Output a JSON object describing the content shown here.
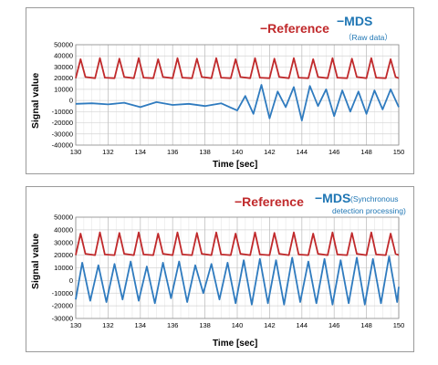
{
  "charts": [
    {
      "legend_ref": "−Reference",
      "legend_mds": "−MDS",
      "legend_mds_sub": "（Raw data）",
      "ylabel": "Signal value",
      "xlabel": "Time [sec]"
    },
    {
      "legend_ref": "−Reference",
      "legend_mds": "−MDS",
      "legend_mds_sub1": "(Synchronous",
      "legend_mds_sub2": "detection processing)",
      "ylabel": "Signal value",
      "xlabel": "Time [sec]"
    }
  ],
  "colors": {
    "reference": "#c0292b",
    "mds": "#2f7bbf",
    "grid": "#d4d4d4"
  },
  "chart_data": [
    {
      "type": "line",
      "xlabel": "Time [sec]",
      "ylabel": "Signal value",
      "xlim": [
        130,
        150
      ],
      "ylim": [
        -40000,
        50000
      ],
      "x_ticks": [
        130,
        132,
        134,
        136,
        138,
        140,
        142,
        144,
        146,
        148,
        150
      ],
      "y_ticks": [
        50000,
        40000,
        30000,
        20000,
        10000,
        0,
        -10000,
        -20000,
        -30000,
        -40000
      ],
      "grid": true,
      "legend_position": "top-right",
      "series": [
        {
          "name": "Reference",
          "color": "#c0292b",
          "x": [
            130,
            130.3,
            130.6,
            131.2,
            131.5,
            131.8,
            132.4,
            132.7,
            133.0,
            133.6,
            133.9,
            134.2,
            134.8,
            135.1,
            135.4,
            136.0,
            136.3,
            136.6,
            137.2,
            137.5,
            137.8,
            138.4,
            138.7,
            139.0,
            139.6,
            139.9,
            140.2,
            140.8,
            141.1,
            141.4,
            142.0,
            142.3,
            142.6,
            143.2,
            143.5,
            143.8,
            144.4,
            144.7,
            145.0,
            145.6,
            145.9,
            146.2,
            146.8,
            147.1,
            147.4,
            148.0,
            148.3,
            148.6,
            149.2,
            149.5,
            149.8,
            150
          ],
          "y": [
            20000,
            37000,
            21000,
            20000,
            38000,
            20500,
            20000,
            37500,
            21000,
            20000,
            38000,
            20500,
            20000,
            37000,
            21000,
            20000,
            38000,
            20500,
            20000,
            37500,
            21000,
            20000,
            38000,
            20500,
            20000,
            37000,
            21000,
            20000,
            38000,
            20500,
            20000,
            37500,
            21000,
            20000,
            38000,
            20500,
            20000,
            37000,
            21000,
            20000,
            38000,
            20500,
            20000,
            37500,
            21000,
            20000,
            38000,
            20500,
            20000,
            37000,
            21000,
            20000
          ]
        },
        {
          "name": "MDS (Raw data)",
          "color": "#2f7bbf",
          "x": [
            130,
            131,
            132,
            133,
            134,
            135,
            136,
            137,
            138,
            139,
            140,
            140.5,
            141,
            141.5,
            142,
            142.5,
            143,
            143.5,
            144,
            144.5,
            145,
            145.5,
            146,
            146.5,
            147,
            147.5,
            148,
            148.5,
            149,
            149.5,
            150
          ],
          "y": [
            -3000,
            -2500,
            -3500,
            -2000,
            -6000,
            -1500,
            -4000,
            -3000,
            -5000,
            -2500,
            -9000,
            4000,
            -12000,
            14000,
            -16000,
            8000,
            -6000,
            12000,
            -18000,
            13000,
            -5000,
            10000,
            -14000,
            9000,
            -10000,
            8000,
            -12000,
            9000,
            -8000,
            10000,
            -6000
          ]
        }
      ]
    },
    {
      "type": "line",
      "xlabel": "Time [sec]",
      "ylabel": "Signal value",
      "xlim": [
        130,
        150
      ],
      "ylim": [
        -30000,
        50000
      ],
      "x_ticks": [
        130,
        132,
        134,
        136,
        138,
        140,
        142,
        144,
        146,
        148,
        150
      ],
      "y_ticks": [
        50000,
        40000,
        30000,
        20000,
        10000,
        0,
        -10000,
        -20000,
        -30000
      ],
      "grid": true,
      "legend_position": "top-right",
      "series": [
        {
          "name": "Reference",
          "color": "#c0292b",
          "x": [
            130,
            130.3,
            130.6,
            131.2,
            131.5,
            131.8,
            132.4,
            132.7,
            133.0,
            133.6,
            133.9,
            134.2,
            134.8,
            135.1,
            135.4,
            136.0,
            136.3,
            136.6,
            137.2,
            137.5,
            137.8,
            138.4,
            138.7,
            139.0,
            139.6,
            139.9,
            140.2,
            140.8,
            141.1,
            141.4,
            142.0,
            142.3,
            142.6,
            143.2,
            143.5,
            143.8,
            144.4,
            144.7,
            145.0,
            145.6,
            145.9,
            146.2,
            146.8,
            147.1,
            147.4,
            148.0,
            148.3,
            148.6,
            149.2,
            149.5,
            149.8,
            150
          ],
          "y": [
            20000,
            37000,
            21000,
            20000,
            38000,
            20500,
            20000,
            37500,
            21000,
            20000,
            38000,
            20500,
            20000,
            37000,
            21000,
            20000,
            38000,
            20500,
            20000,
            37500,
            21000,
            20000,
            38000,
            20500,
            20000,
            37000,
            21000,
            20000,
            38000,
            20500,
            20000,
            37500,
            21000,
            20000,
            38000,
            20500,
            20000,
            37000,
            21000,
            20000,
            38000,
            20500,
            20000,
            37500,
            21000,
            20000,
            38000,
            20500,
            20000,
            37000,
            21000,
            20000
          ]
        },
        {
          "name": "MDS (Synchronous detection processing)",
          "color": "#2f7bbf",
          "x": [
            130,
            130.4,
            130.9,
            131.4,
            131.9,
            132.4,
            132.9,
            133.4,
            133.9,
            134.4,
            134.9,
            135.4,
            135.9,
            136.4,
            136.9,
            137.4,
            137.9,
            138.4,
            138.9,
            139.4,
            139.9,
            140.4,
            140.9,
            141.4,
            141.9,
            142.4,
            142.9,
            143.4,
            143.9,
            144.4,
            144.9,
            145.4,
            145.9,
            146.4,
            146.9,
            147.4,
            147.9,
            148.4,
            148.9,
            149.4,
            149.9,
            150
          ],
          "y": [
            -15000,
            14000,
            -16000,
            12000,
            -17000,
            13000,
            -15000,
            15000,
            -16000,
            11000,
            -18000,
            14000,
            -14000,
            15000,
            -17000,
            12000,
            -10000,
            13000,
            -15000,
            14000,
            -18000,
            16000,
            -19000,
            17000,
            -18000,
            16000,
            -19000,
            18000,
            -17000,
            15000,
            -18000,
            17000,
            -19000,
            16000,
            -18000,
            18000,
            -19000,
            17000,
            -18000,
            19000,
            -17000,
            -5000
          ]
        }
      ]
    }
  ]
}
